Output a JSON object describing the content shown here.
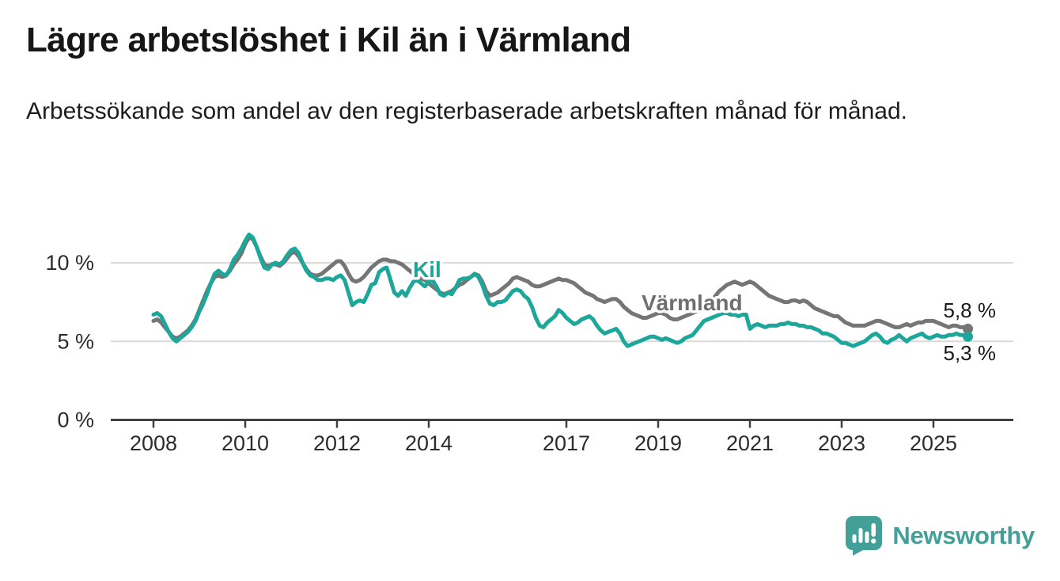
{
  "chart_data": {
    "type": "line",
    "title": "Lägre arbetslöshet i Kil än i Värmland",
    "subtitle": "Arbetssökande som andel av den registerbaserade arbetskraften månad för månad.",
    "unit": "%",
    "x_start": {
      "year": 2008,
      "month": 1
    },
    "x_end": {
      "year": 2025,
      "month": 10
    },
    "grid": "horizontal-only",
    "legend_position": "inline-labels",
    "ylim": [
      0,
      12.5
    ],
    "x_axis": {
      "tick_years": [
        2008,
        2010,
        2012,
        2014,
        2017,
        2019,
        2021,
        2023,
        2025
      ],
      "tick_labels": [
        "2008",
        "2010",
        "2012",
        "2014",
        "2017",
        "2019",
        "2021",
        "2023",
        "2025"
      ]
    },
    "y_axis": {
      "ticks": [
        {
          "value": 0,
          "label": "0 %"
        },
        {
          "value": 5,
          "label": "5 %"
        },
        {
          "value": 10,
          "label": "10 %"
        }
      ]
    },
    "series": [
      {
        "name": "Värmland",
        "color": "#757575",
        "end_label": "5,8 %",
        "last_value": 5.8,
        "values": [
          6.3,
          6.4,
          6.2,
          5.9,
          5.6,
          5.3,
          5.2,
          5.3,
          5.5,
          5.7,
          6.0,
          6.4,
          7.0,
          7.6,
          8.2,
          8.7,
          9.1,
          9.2,
          9.1,
          9.2,
          9.5,
          9.9,
          10.2,
          10.6,
          11.2,
          11.6,
          11.5,
          11.0,
          10.4,
          9.9,
          9.8,
          9.9,
          9.9,
          9.8,
          10.0,
          10.3,
          10.6,
          10.7,
          10.4,
          10.0,
          9.6,
          9.3,
          9.2,
          9.2,
          9.3,
          9.5,
          9.7,
          9.9,
          10.1,
          10.1,
          9.8,
          9.3,
          8.9,
          8.8,
          8.9,
          9.1,
          9.4,
          9.7,
          9.9,
          10.1,
          10.2,
          10.2,
          10.1,
          10.1,
          10.0,
          9.9,
          9.7,
          9.5,
          9.3,
          9.2,
          9.0,
          8.9,
          8.7,
          8.5,
          8.3,
          8.1,
          8.0,
          8.1,
          8.2,
          8.4,
          8.6,
          8.7,
          8.9,
          9.1,
          9.3,
          9.2,
          8.8,
          8.2,
          7.9,
          8.0,
          8.1,
          8.3,
          8.5,
          8.7,
          9.0,
          9.1,
          9.0,
          8.9,
          8.8,
          8.6,
          8.5,
          8.5,
          8.6,
          8.7,
          8.8,
          8.9,
          9.0,
          8.9,
          8.9,
          8.8,
          8.7,
          8.5,
          8.3,
          8.1,
          8.0,
          7.9,
          7.7,
          7.6,
          7.5,
          7.6,
          7.7,
          7.7,
          7.5,
          7.2,
          7.0,
          6.8,
          6.7,
          6.6,
          6.5,
          6.5,
          6.6,
          6.7,
          6.8,
          6.8,
          6.7,
          6.5,
          6.4,
          6.4,
          6.5,
          6.6,
          6.7,
          6.8,
          6.9,
          7.0,
          7.1,
          7.2,
          7.5,
          7.9,
          8.2,
          8.4,
          8.6,
          8.7,
          8.8,
          8.7,
          8.6,
          8.7,
          8.8,
          8.7,
          8.5,
          8.3,
          8.1,
          7.9,
          7.8,
          7.7,
          7.6,
          7.5,
          7.5,
          7.6,
          7.6,
          7.5,
          7.6,
          7.5,
          7.3,
          7.1,
          7.0,
          6.9,
          6.8,
          6.7,
          6.6,
          6.6,
          6.4,
          6.2,
          6.1,
          6.0,
          6.0,
          6.0,
          6.0,
          6.1,
          6.2,
          6.3,
          6.3,
          6.2,
          6.1,
          6.0,
          5.9,
          5.9,
          6.0,
          6.1,
          6.0,
          6.1,
          6.2,
          6.2,
          6.3,
          6.3,
          6.3,
          6.2,
          6.1,
          6.0,
          5.9,
          6.0,
          6.0,
          5.9,
          5.9,
          5.8
        ]
      },
      {
        "name": "Kil",
        "color": "#1da79a",
        "end_label": "5,3 %",
        "last_value": 5.3,
        "values": [
          6.7,
          6.8,
          6.6,
          6.1,
          5.6,
          5.2,
          5.0,
          5.2,
          5.4,
          5.6,
          5.9,
          6.3,
          6.9,
          7.4,
          8.0,
          8.7,
          9.3,
          9.5,
          9.3,
          9.2,
          9.6,
          10.2,
          10.5,
          10.9,
          11.4,
          11.8,
          11.6,
          11.0,
          10.3,
          9.7,
          9.6,
          9.9,
          10.0,
          9.9,
          10.1,
          10.5,
          10.8,
          10.9,
          10.6,
          10.0,
          9.5,
          9.2,
          9.1,
          8.9,
          8.9,
          9.0,
          9.0,
          8.9,
          9.1,
          9.2,
          8.9,
          8.1,
          7.3,
          7.5,
          7.6,
          7.5,
          8.0,
          8.6,
          8.7,
          9.4,
          9.6,
          9.7,
          8.9,
          8.1,
          7.9,
          8.2,
          7.9,
          8.4,
          8.8,
          8.9,
          8.7,
          8.5,
          8.8,
          8.9,
          8.5,
          8.0,
          7.9,
          8.1,
          8.0,
          8.4,
          8.9,
          9.0,
          9.0,
          9.1,
          9.3,
          9.1,
          8.6,
          7.9,
          7.4,
          7.3,
          7.5,
          7.5,
          7.6,
          7.9,
          8.2,
          8.3,
          8.2,
          7.9,
          7.7,
          7.2,
          6.5,
          6.0,
          5.9,
          6.2,
          6.4,
          6.6,
          7.0,
          6.8,
          6.5,
          6.3,
          6.1,
          6.2,
          6.4,
          6.5,
          6.6,
          6.4,
          6.0,
          5.7,
          5.5,
          5.6,
          5.7,
          5.8,
          5.5,
          5.0,
          4.7,
          4.8,
          4.9,
          5.0,
          5.1,
          5.2,
          5.3,
          5.3,
          5.2,
          5.1,
          5.2,
          5.1,
          5.0,
          4.9,
          5.0,
          5.2,
          5.3,
          5.4,
          5.7,
          6.0,
          6.3,
          6.4,
          6.5,
          6.6,
          6.7,
          6.8,
          6.8,
          6.7,
          6.7,
          6.6,
          6.7,
          6.7,
          5.8,
          6.0,
          6.1,
          6.0,
          5.9,
          6.0,
          6.0,
          6.0,
          6.1,
          6.1,
          6.2,
          6.1,
          6.1,
          6.0,
          6.0,
          5.9,
          5.9,
          5.8,
          5.7,
          5.5,
          5.5,
          5.4,
          5.3,
          5.1,
          4.9,
          4.9,
          4.8,
          4.7,
          4.8,
          4.9,
          5.0,
          5.2,
          5.4,
          5.5,
          5.3,
          5.0,
          4.9,
          5.1,
          5.2,
          5.4,
          5.2,
          5.0,
          5.2,
          5.3,
          5.4,
          5.5,
          5.3,
          5.2,
          5.3,
          5.4,
          5.3,
          5.3,
          5.4,
          5.4,
          5.5,
          5.4,
          5.4,
          5.3
        ]
      }
    ]
  },
  "footer": {
    "brand": "Newsworthy",
    "brand_color": "#43a099",
    "logo_icon": "bar-chart-speech-bubble-icon"
  }
}
